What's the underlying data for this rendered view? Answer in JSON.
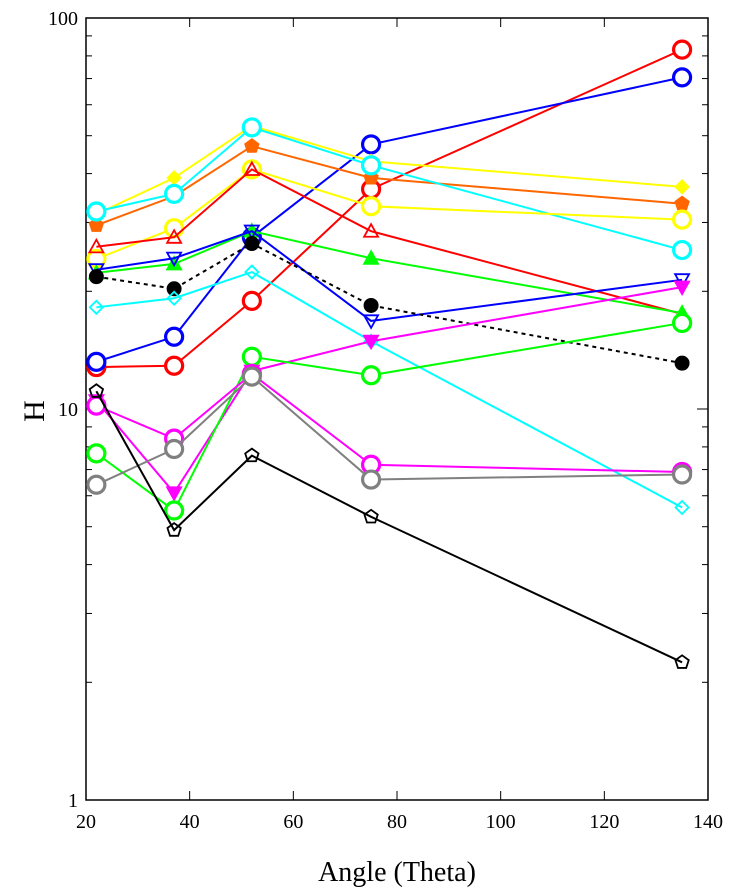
{
  "chart_data": {
    "type": "line",
    "title": "",
    "xlabel": "Angle (Theta)",
    "ylabel": "H",
    "xlim": [
      20,
      140
    ],
    "ylim": [
      1,
      100
    ],
    "yscale": "log",
    "x_ticks": [
      20,
      40,
      60,
      80,
      100,
      120,
      140
    ],
    "y_ticks": [
      1,
      10,
      100
    ],
    "y_tick_labels": [
      "1",
      "10",
      "100"
    ],
    "grid": false,
    "legend": "none",
    "x": [
      22,
      37,
      52,
      75,
      135
    ],
    "series": [
      {
        "color": "#ff0000",
        "marker": "circle",
        "values": [
          12.8,
          12.9,
          18.9,
          36.5,
          83
        ]
      },
      {
        "color": "#0000ff",
        "marker": "circle",
        "values": [
          13.2,
          15.3,
          27.5,
          47.5,
          70.5
        ]
      },
      {
        "color": "#ffff00",
        "marker": "diamond-filled",
        "values": [
          31.5,
          39,
          53,
          43,
          37
        ]
      },
      {
        "color": "#ff6600",
        "marker": "pentagon-filled",
        "values": [
          29.5,
          35,
          47,
          39,
          33.5
        ]
      },
      {
        "color": "#00ffff",
        "marker": "circle",
        "values": [
          32,
          35.5,
          52.5,
          42,
          25.5
        ]
      },
      {
        "color": "#ffff00",
        "marker": "circle",
        "values": [
          24.2,
          29,
          41,
          33,
          30.5
        ]
      },
      {
        "color": "#ff0000",
        "marker": "triangle-up",
        "values": [
          26,
          27.5,
          41,
          28.5,
          17.5
        ]
      },
      {
        "color": "#00ff00",
        "marker": "triangle-up-filled",
        "values": [
          22.3,
          23.5,
          28.5,
          24.3,
          17.6
        ]
      },
      {
        "color": "#0000ff",
        "marker": "triangle-down",
        "values": [
          22.7,
          24.3,
          28.5,
          16.8,
          21.4
        ]
      },
      {
        "color": "#000000",
        "marker": "circle-filled",
        "dashed": true,
        "values": [
          21.8,
          20.3,
          26.5,
          18.4,
          13.1
        ]
      },
      {
        "color": "#00ffff",
        "marker": "diamond",
        "values": [
          18.2,
          19.2,
          22.4,
          14.9,
          5.6
        ]
      },
      {
        "color": "#ff00ff",
        "marker": "triangle-down-filled",
        "values": [
          10.5,
          6.1,
          12.5,
          14.9,
          20.5
        ]
      },
      {
        "color": "#00ff00",
        "marker": "circle",
        "values": [
          7.7,
          5.5,
          13.6,
          12.2,
          16.6
        ]
      },
      {
        "color": "#ff00ff",
        "marker": "circle",
        "values": [
          10.2,
          8.4,
          12.3,
          7.2,
          6.9
        ]
      },
      {
        "color": "#808080",
        "marker": "circle",
        "values": [
          6.4,
          7.9,
          12.1,
          6.6,
          6.8
        ]
      },
      {
        "color": "#000000",
        "marker": "pentagon",
        "values": [
          11.1,
          4.9,
          7.6,
          5.3,
          2.25
        ]
      }
    ]
  }
}
